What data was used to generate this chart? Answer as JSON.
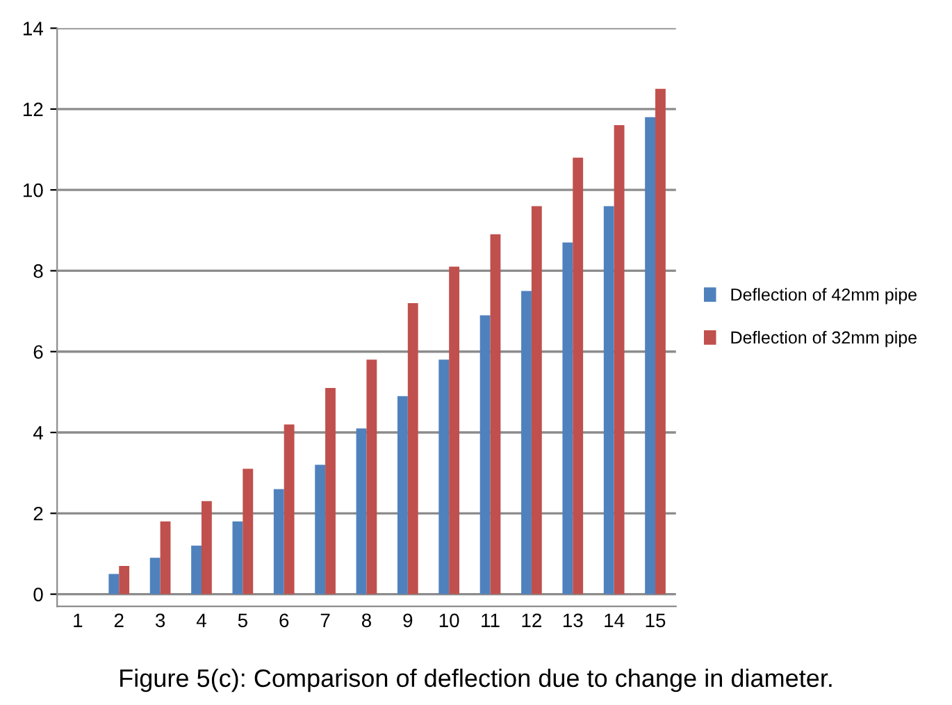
{
  "chart_data": {
    "type": "bar",
    "categories": [
      "1",
      "2",
      "3",
      "4",
      "5",
      "6",
      "7",
      "8",
      "9",
      "10",
      "11",
      "12",
      "13",
      "14",
      "15"
    ],
    "series": [
      {
        "name": "Deflection of 42mm pipe",
        "color": "#4f81bd",
        "values": [
          0,
          0.5,
          0.9,
          1.2,
          1.8,
          2.6,
          3.2,
          4.1,
          4.9,
          5.8,
          6.9,
          7.5,
          8.7,
          9.6,
          11.8
        ]
      },
      {
        "name": "Deflection of 32mm pipe",
        "color": "#c0504d",
        "values": [
          0,
          0.7,
          1.8,
          2.3,
          3.1,
          4.2,
          5.1,
          5.8,
          7.2,
          8.1,
          8.9,
          9.6,
          10.8,
          11.6,
          12.5
        ]
      }
    ],
    "ylim": [
      -0.3,
      14
    ],
    "yticks": [
      0,
      2,
      4,
      6,
      8,
      10,
      12,
      14
    ],
    "grid": "y",
    "legend": "right",
    "annotations": [
      "Figure 5(c): Comparison of deflection due to change in diameter."
    ]
  }
}
